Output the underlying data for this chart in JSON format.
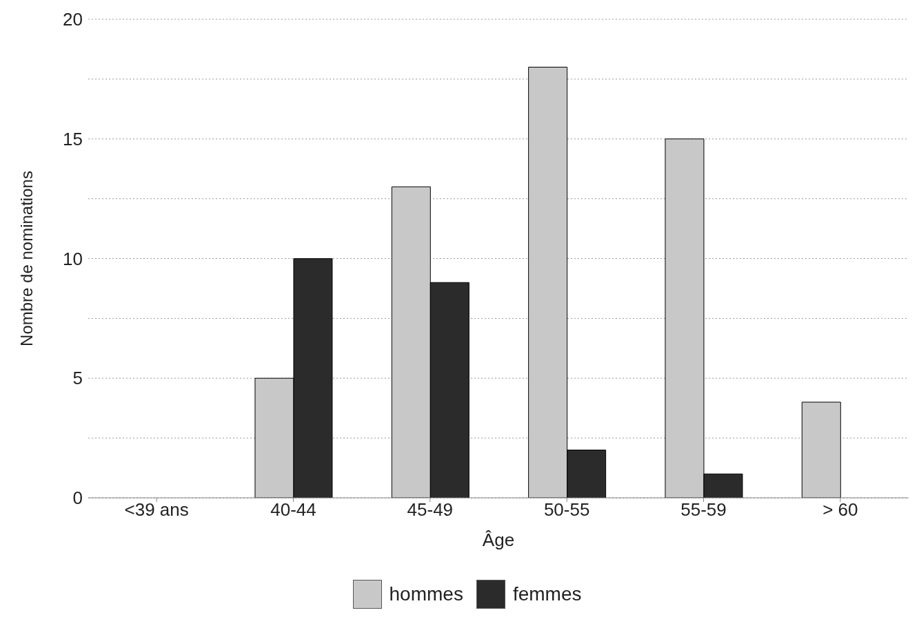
{
  "chart_data": {
    "type": "bar",
    "xlabel": "Âge",
    "ylabel": "Nombre de nominations",
    "categories": [
      "<39 ans",
      "40-44",
      "45-49",
      "50-55",
      "55-59",
      "> 60"
    ],
    "series": [
      {
        "name": "hommes",
        "color": "#c8c8c8",
        "values": [
          0,
          5,
          13,
          18,
          15,
          4
        ]
      },
      {
        "name": "femmes",
        "color": "#2b2b2b",
        "values": [
          0,
          10,
          9,
          2,
          1,
          0
        ]
      }
    ],
    "ylim": [
      0,
      20
    ],
    "yticks": [
      0,
      {
        "value": 2.5,
        "label": null
      },
      5,
      {
        "value": 7.5,
        "label": null
      },
      10,
      {
        "value": 12.5,
        "label": null
      },
      15,
      {
        "value": 17.5,
        "label": null
      },
      20
    ],
    "grid": "y",
    "legend": "bottom"
  }
}
